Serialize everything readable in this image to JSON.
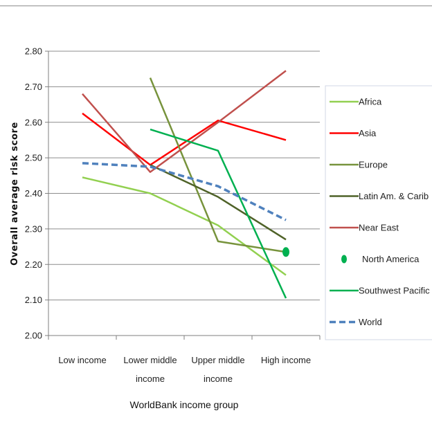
{
  "chart_data": {
    "type": "line",
    "xlabel": "WorldBank income group",
    "ylabel": "Overall average risk score",
    "ylim": [
      2.0,
      2.8
    ],
    "yticks": [
      "2.00",
      "2.10",
      "2.20",
      "2.30",
      "2.40",
      "2.50",
      "2.60",
      "2.70",
      "2.80"
    ],
    "categories": [
      [
        "Low income"
      ],
      [
        "Lower middle",
        "income"
      ],
      [
        "Upper middle",
        "income"
      ],
      [
        "High income"
      ]
    ],
    "grid": "horizontal",
    "legend_position": "right",
    "series": [
      {
        "name": "Africa",
        "color": "#92d050",
        "style": "solid",
        "values": [
          2.445,
          2.4,
          2.31,
          2.17
        ]
      },
      {
        "name": "Asia",
        "color": "#ff0000",
        "style": "solid",
        "values": [
          2.625,
          2.48,
          2.605,
          2.55
        ]
      },
      {
        "name": "Europe",
        "color": "#77933c",
        "style": "solid",
        "values": [
          null,
          2.725,
          2.265,
          2.235
        ]
      },
      {
        "name": "Latin Am. & Carib",
        "color": "#4f6228",
        "style": "solid",
        "values": [
          null,
          2.48,
          2.39,
          2.27
        ]
      },
      {
        "name": "Near East",
        "color": "#c0504d",
        "style": "solid",
        "values": [
          2.68,
          2.46,
          2.6,
          2.745
        ]
      },
      {
        "name": "North America",
        "color": "#00b050",
        "style": "marker",
        "values": [
          null,
          null,
          null,
          2.235
        ]
      },
      {
        "name": "Southwest Pacific",
        "color": "#00b050",
        "style": "solid",
        "values": [
          null,
          2.58,
          2.52,
          2.105
        ]
      },
      {
        "name": "World",
        "color": "#4f81bd",
        "style": "dashed",
        "values": [
          2.485,
          2.475,
          2.42,
          2.325
        ]
      }
    ]
  }
}
